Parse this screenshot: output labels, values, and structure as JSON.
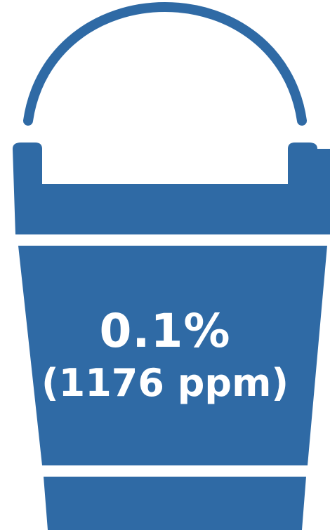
{
  "bucket": {
    "color": "#2f6aa5",
    "background": "#ffffff",
    "percent_text": "0.1%",
    "ppm_text": "(1176 ppm)"
  }
}
